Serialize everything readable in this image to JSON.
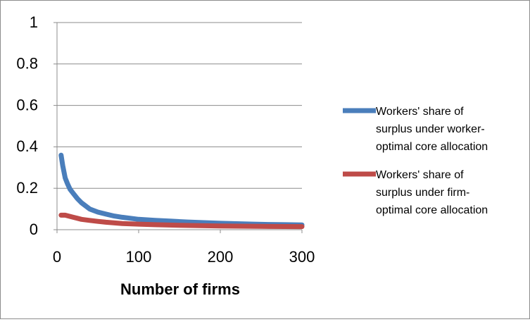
{
  "chart_data": {
    "type": "line",
    "title": "",
    "xlabel": "Number of firms",
    "ylabel": "",
    "xlim": [
      0,
      300
    ],
    "ylim": [
      0,
      1
    ],
    "x_ticks": [
      "0",
      "100",
      "200",
      "300"
    ],
    "y_ticks": [
      "0",
      "0.2",
      "0.4",
      "0.6",
      "0.8",
      "1"
    ],
    "grid": "horizontal",
    "legend_position": "right",
    "series": [
      {
        "name": "Workers' share of surplus under worker-optimal core allocation",
        "legend_lines": [
          "Workers' share of",
          "surplus under worker-",
          "optimal core allocation"
        ],
        "color": "#4a7ebb",
        "x": [
          5,
          7,
          10,
          13,
          16,
          20,
          25,
          30,
          35,
          40,
          50,
          60,
          70,
          80,
          90,
          100,
          120,
          140,
          160,
          180,
          200,
          220,
          240,
          260,
          280,
          300
        ],
        "y": [
          0.36,
          0.31,
          0.25,
          0.22,
          0.195,
          0.175,
          0.15,
          0.13,
          0.115,
          0.1,
          0.085,
          0.075,
          0.066,
          0.06,
          0.055,
          0.05,
          0.045,
          0.041,
          0.037,
          0.034,
          0.031,
          0.029,
          0.027,
          0.025,
          0.024,
          0.023
        ]
      },
      {
        "name": "Workers' share of surplus under firm-optimal core allocation",
        "legend_lines": [
          "Workers' share of",
          "surplus under firm-",
          "optimal core allocation"
        ],
        "color": "#be4b48",
        "x": [
          5,
          10,
          15,
          20,
          25,
          30,
          40,
          50,
          60,
          80,
          100,
          120,
          150,
          200,
          250,
          300
        ],
        "y": [
          0.07,
          0.07,
          0.065,
          0.06,
          0.055,
          0.05,
          0.045,
          0.04,
          0.036,
          0.03,
          0.027,
          0.024,
          0.021,
          0.018,
          0.016,
          0.015
        ]
      }
    ]
  }
}
